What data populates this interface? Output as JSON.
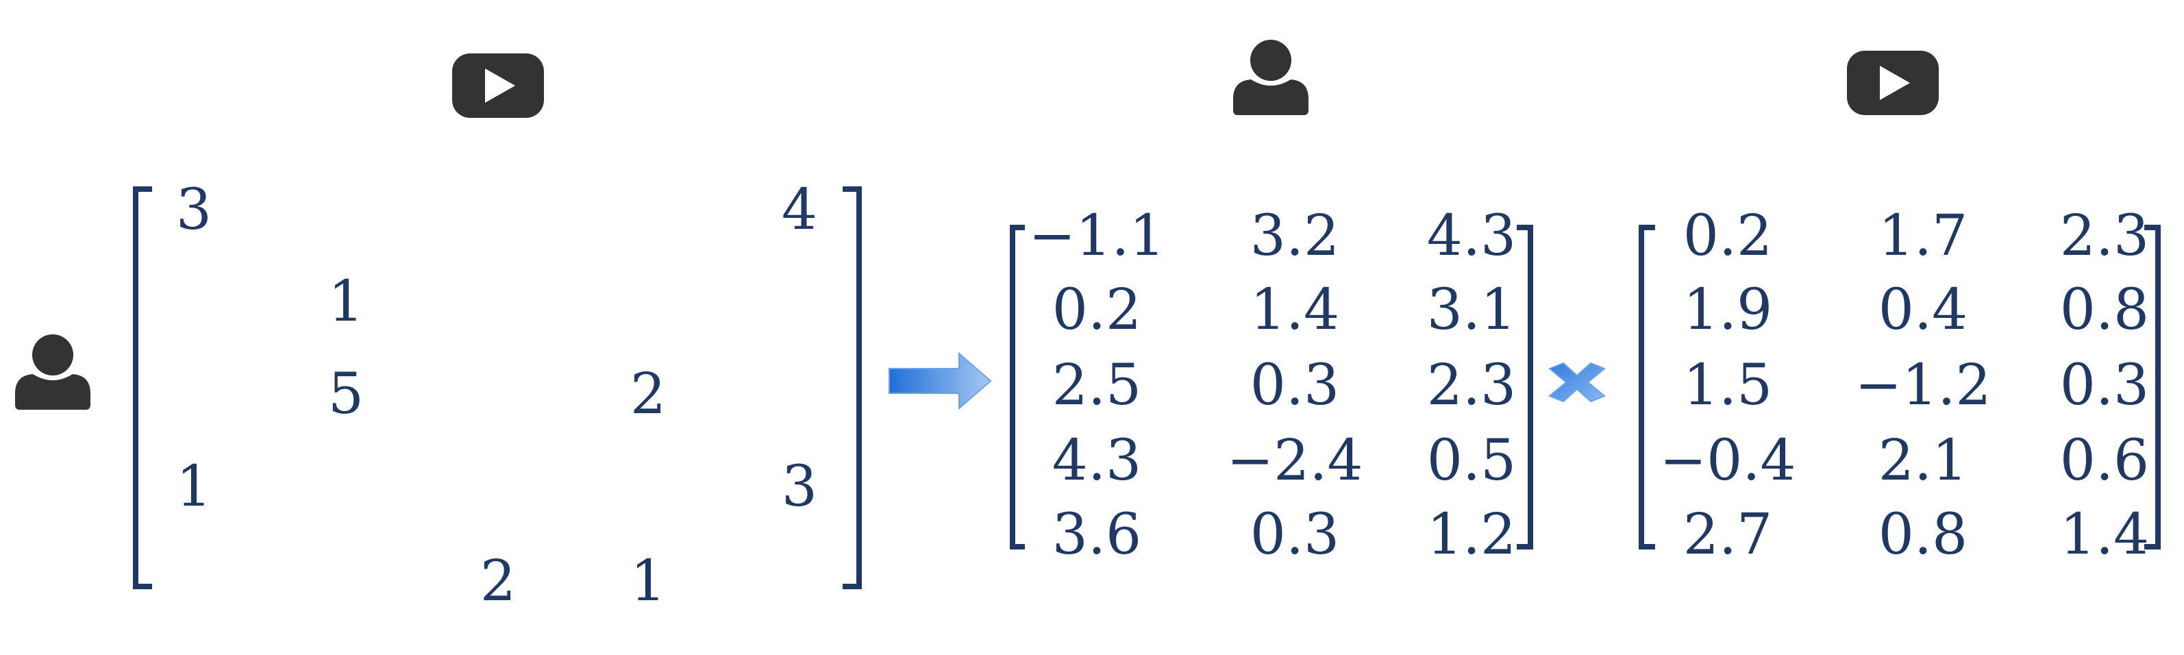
{
  "colors": {
    "matrix_text": "#1f3864",
    "icon": "#333333",
    "arrow_light": "#a6c8f4",
    "arrow_dark": "#1f6fd6"
  },
  "icons": {
    "user": "user-icon",
    "item": "play-video-icon"
  },
  "rating_matrix": {
    "entries": [
      {
        "row": 1,
        "col": 1,
        "value": "3"
      },
      {
        "row": 2,
        "col": 2,
        "value": "1"
      },
      {
        "row": 3,
        "col": 2,
        "value": "5"
      },
      {
        "row": 4,
        "col": 1,
        "value": "1"
      },
      {
        "row": 5,
        "col": 3,
        "value": "2"
      },
      {
        "row": 3,
        "col": 4,
        "value": "2"
      },
      {
        "row": 5,
        "col": 4,
        "value": "1"
      },
      {
        "row": 1,
        "col": 5,
        "value": "4"
      },
      {
        "row": 4,
        "col": 5,
        "value": "3"
      }
    ]
  },
  "user_factor_matrix": {
    "rows": [
      [
        "−1.1",
        "3.2",
        "4.3"
      ],
      [
        "0.2",
        "1.4",
        "3.1"
      ],
      [
        "2.5",
        "0.3",
        "2.3"
      ],
      [
        "4.3",
        "−2.4",
        "0.5"
      ],
      [
        "3.6",
        "0.3",
        "1.2"
      ]
    ]
  },
  "item_factor_matrix": {
    "rows": [
      [
        "0.2",
        "1.7",
        "2.3"
      ],
      [
        "1.9",
        "0.4",
        "0.8"
      ],
      [
        "1.5",
        "−1.2",
        "0.3"
      ],
      [
        "−0.4",
        "2.1",
        "0.6"
      ],
      [
        "2.7",
        "0.8",
        "1.4"
      ]
    ]
  },
  "operators": {
    "equals_arrow": "arrow-right-icon",
    "multiply": "multiply-icon"
  }
}
